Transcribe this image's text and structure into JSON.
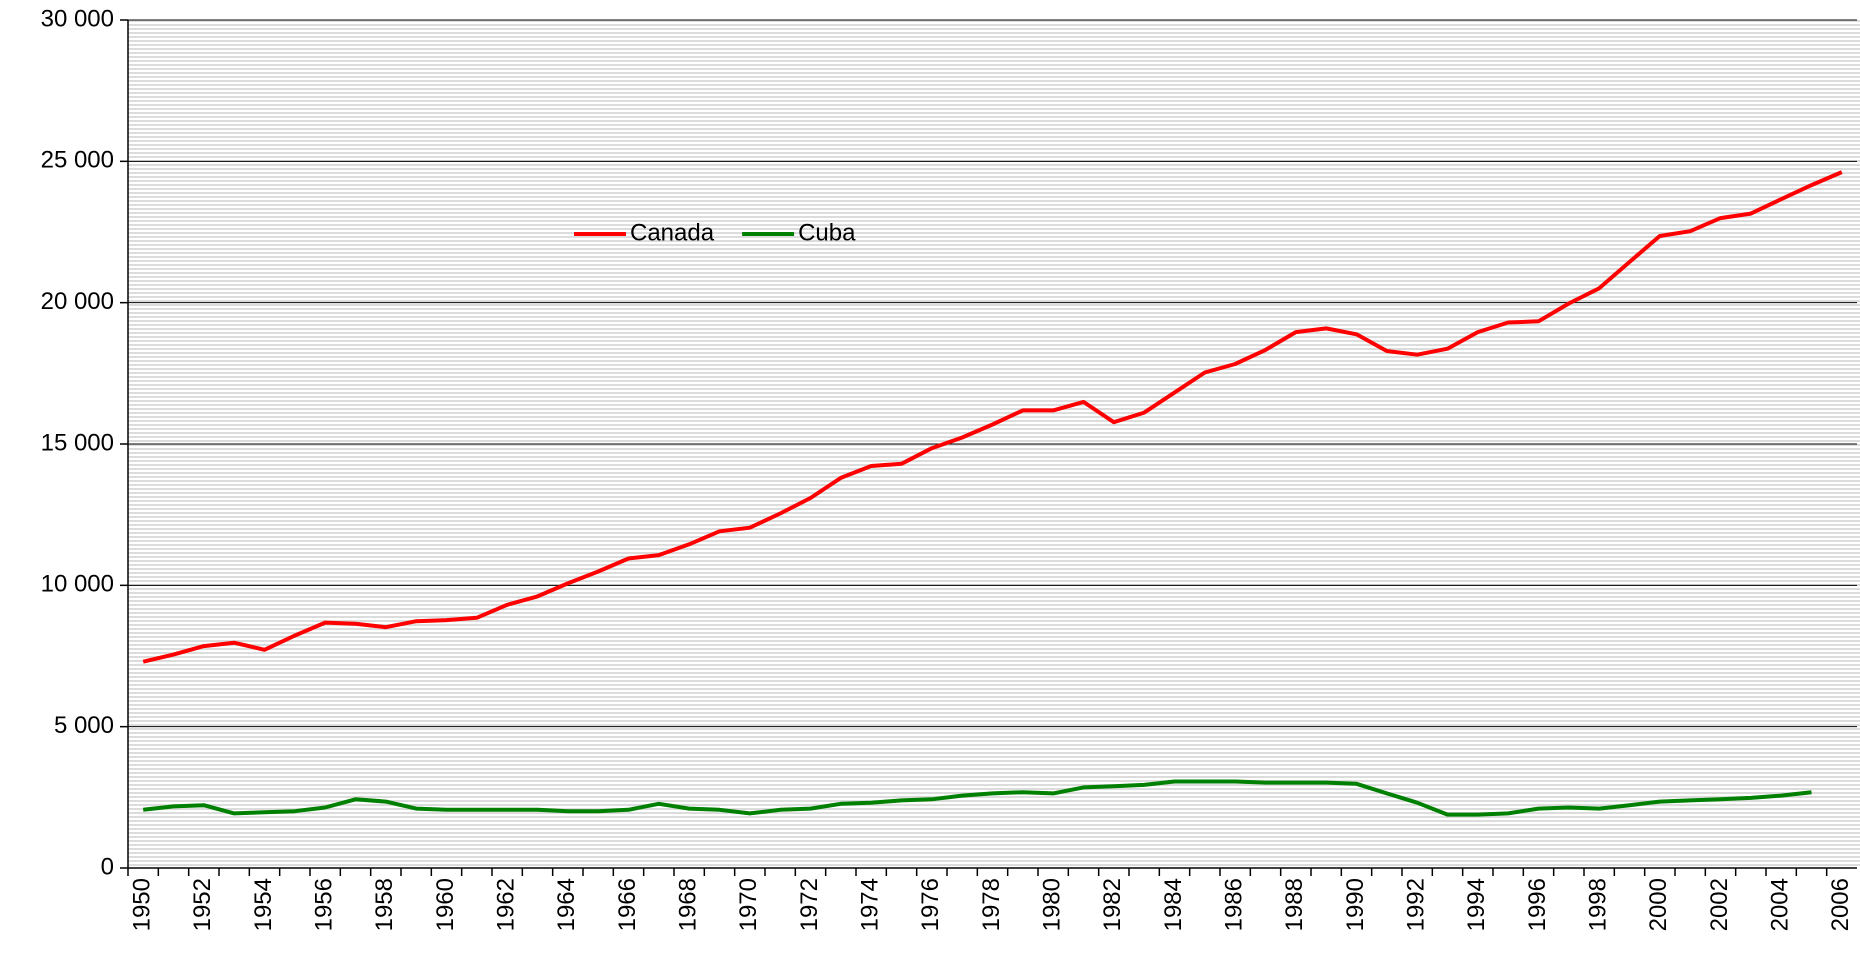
{
  "chart_data": {
    "type": "line",
    "categories": [
      "1950",
      null,
      "1952",
      null,
      "1954",
      null,
      "1956",
      null,
      "1958",
      null,
      "1960",
      null,
      "1962",
      null,
      "1964",
      null,
      "1966",
      null,
      "1968",
      null,
      "1970",
      null,
      "1972",
      null,
      "1974",
      null,
      "1976",
      null,
      "1978",
      null,
      "1980",
      null,
      "1982",
      null,
      "1984",
      null,
      "1986",
      null,
      "1988",
      null,
      "1990",
      null,
      "1992",
      null,
      "1994",
      null,
      "1996",
      null,
      "1998",
      null,
      "2000",
      null,
      "2002",
      null,
      "2004",
      null,
      "2006"
    ],
    "series": [
      {
        "name": "Canada",
        "color": "#ff0000",
        "values": [
          7300,
          7550,
          7850,
          7970,
          7720,
          8220,
          8680,
          8640,
          8520,
          8730,
          8770,
          8850,
          9310,
          9610,
          10070,
          10490,
          10950,
          11070,
          11450,
          11910,
          12040,
          12540,
          13090,
          13800,
          14220,
          14300,
          14850,
          15230,
          15690,
          16190,
          16190,
          16490,
          15770,
          16110,
          16820,
          17530,
          17830,
          18330,
          18960,
          19090,
          18880,
          18290,
          18160,
          18370,
          18960,
          19300,
          19340,
          19970,
          20510,
          21440,
          22360,
          22530,
          22990,
          23150,
          23660,
          24160,
          24620
        ]
      },
      {
        "name": "Cuba",
        "color": "#008000",
        "values": [
          2060,
          2180,
          2220,
          1930,
          1970,
          2010,
          2140,
          2430,
          2350,
          2100,
          2060,
          2060,
          2060,
          2060,
          2010,
          2010,
          2060,
          2270,
          2100,
          2060,
          1930,
          2060,
          2100,
          2270,
          2310,
          2390,
          2430,
          2560,
          2640,
          2680,
          2640,
          2850,
          2890,
          2940,
          3060,
          3060,
          3060,
          3020,
          3020,
          3020,
          2980,
          2640,
          2310,
          1890,
          1890,
          1930,
          2100,
          2140,
          2100,
          2220,
          2350,
          2390,
          2430,
          2480,
          2560,
          2680,
          null
        ]
      }
    ],
    "ylim": [
      0,
      30000
    ],
    "yticks": [
      0,
      {
        "value": 5000,
        "label": "5 000"
      },
      {
        "value": 10000,
        "label": "10 000"
      },
      {
        "value": 15000,
        "label": "15 000"
      },
      {
        "value": 20000,
        "label": "20 000"
      },
      {
        "value": 25000,
        "label": "25 000"
      },
      {
        "value": 30000,
        "label": "30 000"
      }
    ],
    "grid": true
  }
}
